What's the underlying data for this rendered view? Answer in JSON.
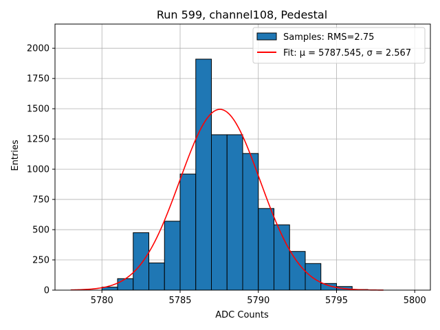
{
  "chart_data": {
    "type": "bar",
    "title": "Run 599, channel108, Pedestal",
    "xlabel": "ADC Counts",
    "ylabel": "Entries",
    "xlim": [
      5777,
      5801
    ],
    "ylim": [
      0,
      2200
    ],
    "xticks": [
      5780,
      5785,
      5790,
      5795,
      5800
    ],
    "yticks": [
      0,
      250,
      500,
      750,
      1000,
      1250,
      1500,
      1750,
      2000
    ],
    "grid": true,
    "legend_position": "top-right",
    "histogram": {
      "name": "Samples: RMS=2.75",
      "color": "#1f77b4",
      "edgecolor": "#000000",
      "bin_edges": [
        5780,
        5781,
        5782,
        5783,
        5784,
        5785,
        5786,
        5787,
        5788,
        5789,
        5790,
        5791,
        5792,
        5793,
        5794,
        5795,
        5796,
        5797
      ],
      "counts": [
        25,
        95,
        475,
        225,
        570,
        960,
        1910,
        1285,
        1285,
        1130,
        675,
        540,
        320,
        220,
        55,
        30,
        5
      ]
    },
    "fit": {
      "name": "Fit: μ = 5787.545, σ = 2.567",
      "color": "#ff0000",
      "mu": 5787.545,
      "sigma": 2.567,
      "amplitude": 1495,
      "x_range": [
        5778,
        5798
      ]
    }
  }
}
